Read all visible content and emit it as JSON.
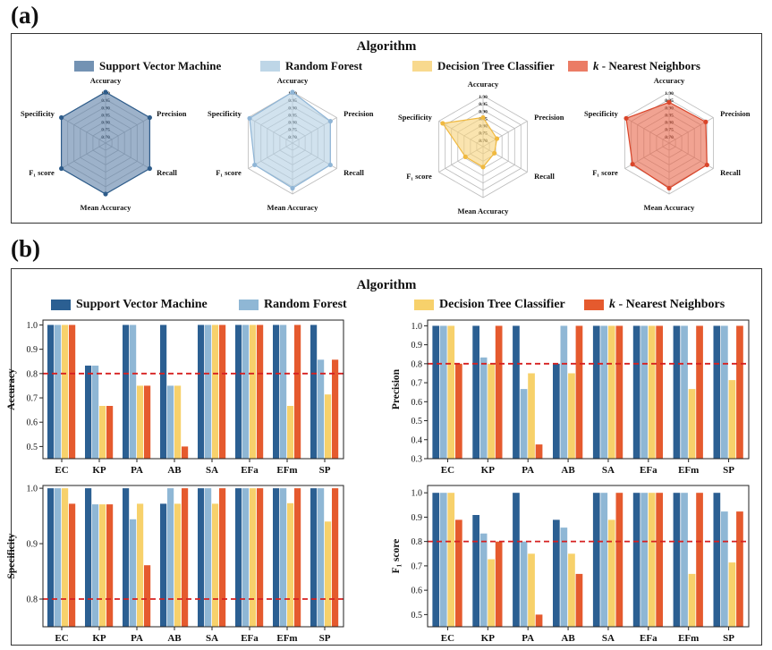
{
  "panel_a_label": "(a)",
  "panel_b_label": "(b)",
  "legend_title": "Algorithm",
  "legend": [
    {
      "name": "Support Vector Machine",
      "html": "Support Vector Machine"
    },
    {
      "name": "Random Forest",
      "html": "Random Forest"
    },
    {
      "name": "Decision Tree Classifier",
      "html": "Decision Tree Classifier"
    },
    {
      "name": "k - Nearest Neighbors",
      "html": "<i>k</i> - Nearest Neighbors"
    }
  ],
  "colors": {
    "radar_fill": [
      "#5b7fa6",
      "#b3cfe3",
      "#f7d27a",
      "#e8654a"
    ],
    "radar_edge": [
      "#2e5c8a",
      "#8fb5d6",
      "#f0b940",
      "#d9452a"
    ],
    "bar": [
      "#2b5f92",
      "#8fb7d5",
      "#f7d16b",
      "#e55a2e"
    ],
    "threshold": "#d62020"
  },
  "chart_data": [
    {
      "type": "radar",
      "axes": [
        "Accuracy",
        "Precision",
        "Recall",
        "Mean Accuracy",
        "F₁ score",
        "Specificity"
      ],
      "rticks": [
        "1.00",
        "0.95",
        "0.90",
        "0.85",
        "0.80",
        "0.75",
        "0.70"
      ],
      "rlim": [
        0.65,
        1.0
      ],
      "series": [
        {
          "name": "Support Vector Machine",
          "values": [
            1.0,
            1.0,
            1.0,
            1.0,
            1.0,
            1.0
          ]
        },
        {
          "name": "Random Forest",
          "values": [
            1.0,
            0.95,
            0.95,
            0.96,
            0.95,
            0.99
          ]
        },
        {
          "name": "Decision Tree Classifier",
          "values": [
            0.85,
            0.76,
            0.74,
            0.79,
            0.79,
            0.97
          ]
        },
        {
          "name": "k - Nearest Neighbors",
          "values": [
            0.93,
            0.94,
            0.95,
            0.96,
            0.94,
            0.99
          ]
        }
      ]
    },
    {
      "type": "bar",
      "ylabel": "Accuracy",
      "categories": [
        "EC",
        "KP",
        "PA",
        "AB",
        "SA",
        "EFa",
        "EFm",
        "SP"
      ],
      "ylim": [
        0.45,
        1.02
      ],
      "yticks": [
        0.5,
        0.6,
        0.7,
        0.8,
        0.9,
        1.0
      ],
      "ytick_labels": [
        "0.5",
        "0.6",
        "0.7",
        "0.8",
        "0.9",
        "1.0"
      ],
      "threshold": 0.8,
      "series": [
        {
          "name": "Support Vector Machine",
          "values": [
            1.0,
            0.833,
            1.0,
            1.0,
            1.0,
            1.0,
            1.0,
            1.0
          ]
        },
        {
          "name": "Random Forest",
          "values": [
            1.0,
            0.833,
            1.0,
            0.75,
            1.0,
            1.0,
            1.0,
            0.857
          ]
        },
        {
          "name": "Decision Tree Classifier",
          "values": [
            1.0,
            0.667,
            0.75,
            0.75,
            1.0,
            1.0,
            0.667,
            0.714
          ]
        },
        {
          "name": "k - Nearest Neighbors",
          "values": [
            1.0,
            0.667,
            0.75,
            0.5,
            1.0,
            1.0,
            1.0,
            0.857
          ]
        }
      ]
    },
    {
      "type": "bar",
      "ylabel": "Precision",
      "categories": [
        "EC",
        "KP",
        "PA",
        "AB",
        "SA",
        "EFa",
        "EFm",
        "SP"
      ],
      "ylim": [
        0.3,
        1.03
      ],
      "yticks": [
        0.3,
        0.4,
        0.5,
        0.6,
        0.7,
        0.8,
        0.9,
        1.0
      ],
      "ytick_labels": [
        "0.3",
        "0.4",
        "0.5",
        "0.6",
        "0.7",
        "0.8",
        "0.9",
        "1.0"
      ],
      "threshold": 0.8,
      "series": [
        {
          "name": "Support Vector Machine",
          "values": [
            1.0,
            1.0,
            1.0,
            0.8,
            1.0,
            1.0,
            1.0,
            1.0
          ]
        },
        {
          "name": "Random Forest",
          "values": [
            1.0,
            0.833,
            0.667,
            1.0,
            1.0,
            1.0,
            1.0,
            1.0
          ]
        },
        {
          "name": "Decision Tree Classifier",
          "values": [
            1.0,
            0.8,
            0.75,
            0.75,
            1.0,
            1.0,
            0.667,
            0.714
          ]
        },
        {
          "name": "k - Nearest Neighbors",
          "values": [
            0.8,
            1.0,
            0.375,
            1.0,
            1.0,
            1.0,
            1.0,
            1.0
          ]
        }
      ]
    },
    {
      "type": "bar",
      "ylabel": "Specificity",
      "categories": [
        "EC",
        "KP",
        "PA",
        "AB",
        "SA",
        "EFa",
        "EFm",
        "SP"
      ],
      "ylim": [
        0.75,
        1.005
      ],
      "yticks": [
        0.8,
        0.9,
        1.0
      ],
      "ytick_labels": [
        "0.8",
        "0.9",
        "1.0"
      ],
      "threshold": 0.8,
      "series": [
        {
          "name": "Support Vector Machine",
          "values": [
            1.0,
            1.0,
            1.0,
            0.972,
            1.0,
            1.0,
            1.0,
            1.0
          ]
        },
        {
          "name": "Random Forest",
          "values": [
            1.0,
            0.971,
            0.944,
            1.0,
            1.0,
            1.0,
            1.0,
            1.0
          ]
        },
        {
          "name": "Decision Tree Classifier",
          "values": [
            1.0,
            0.971,
            0.972,
            0.972,
            0.972,
            1.0,
            0.973,
            0.94
          ]
        },
        {
          "name": "k - Nearest Neighbors",
          "values": [
            0.972,
            0.971,
            0.861,
            1.0,
            1.0,
            1.0,
            1.0,
            1.0
          ]
        }
      ]
    },
    {
      "type": "bar",
      "ylabel": "F₁ score",
      "categories": [
        "EC",
        "KP",
        "PA",
        "AB",
        "SA",
        "EFa",
        "EFm",
        "SP"
      ],
      "ylim": [
        0.45,
        1.03
      ],
      "yticks": [
        0.5,
        0.6,
        0.7,
        0.8,
        0.9,
        1.0
      ],
      "ytick_labels": [
        "0.5",
        "0.6",
        "0.7",
        "0.8",
        "0.9",
        "1.0"
      ],
      "threshold": 0.8,
      "series": [
        {
          "name": "Support Vector Machine",
          "values": [
            1.0,
            0.909,
            1.0,
            0.889,
            1.0,
            1.0,
            1.0,
            1.0
          ]
        },
        {
          "name": "Random Forest",
          "values": [
            1.0,
            0.833,
            0.8,
            0.857,
            1.0,
            1.0,
            1.0,
            0.923
          ]
        },
        {
          "name": "Decision Tree Classifier",
          "values": [
            1.0,
            0.727,
            0.75,
            0.75,
            0.889,
            1.0,
            0.667,
            0.714
          ]
        },
        {
          "name": "k - Nearest Neighbors",
          "values": [
            0.889,
            0.8,
            0.5,
            0.667,
            1.0,
            1.0,
            1.0,
            0.923
          ]
        }
      ]
    }
  ]
}
